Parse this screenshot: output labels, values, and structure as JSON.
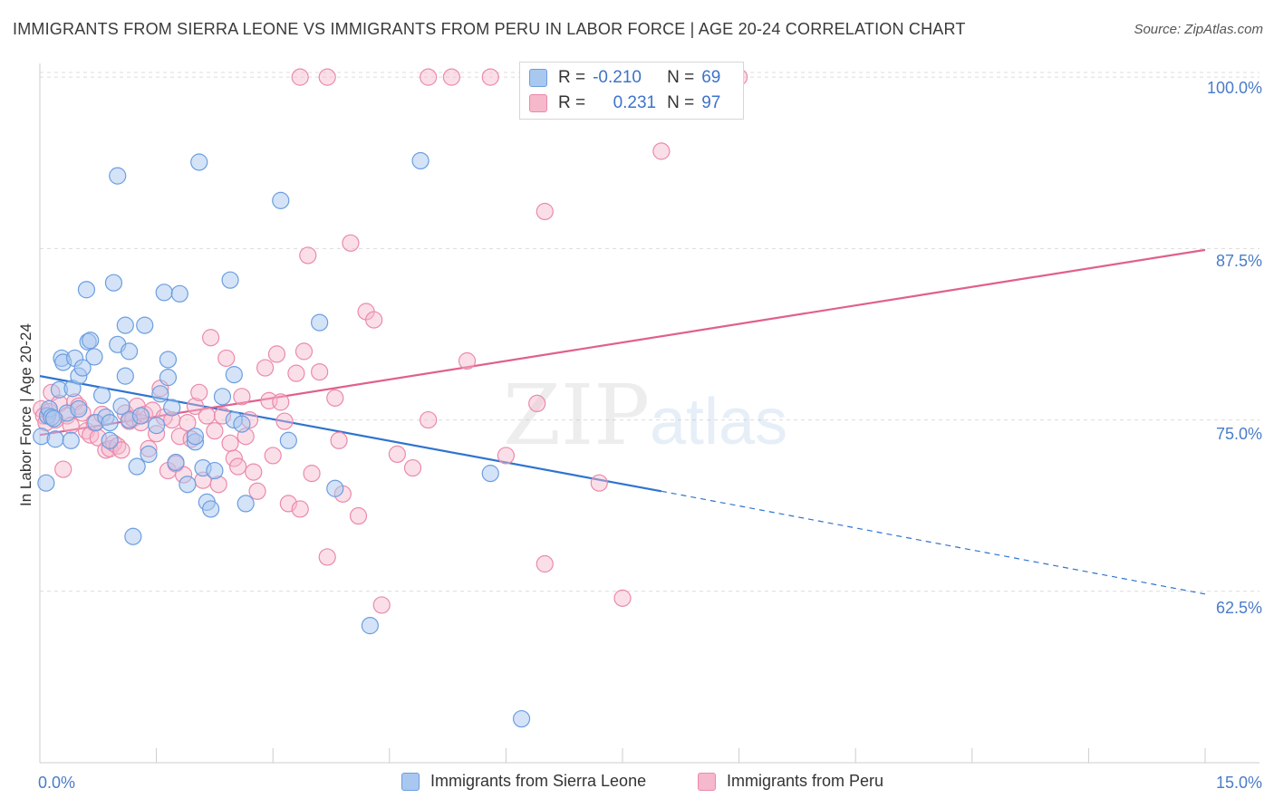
{
  "title": "IMMIGRANTS FROM SIERRA LEONE VS IMMIGRANTS FROM PERU IN LABOR FORCE | AGE 20-24 CORRELATION CHART",
  "source": "Source: ZipAtlas.com",
  "watermark": {
    "zip": "ZIP",
    "atlas": "atlas"
  },
  "stats": {
    "r_label": "R =",
    "n_label": "N =",
    "sierra": {
      "r": "-0.210",
      "n": "69"
    },
    "peru": {
      "r": "0.231",
      "n": "97"
    }
  },
  "colors": {
    "sierra_fill": "#a9c8ef",
    "sierra_stroke": "#6b9ee0",
    "sierra_line": "#2f74d0",
    "peru_fill": "#f6b8cb",
    "peru_stroke": "#ea8aab",
    "peru_line": "#e0608c",
    "tick_label": "#4a7cc9",
    "grid": "#dcdcdc"
  },
  "chart_data": {
    "type": "scatter",
    "title": "IMMIGRANTS FROM SIERRA LEONE VS IMMIGRANTS FROM PERU IN LABOR FORCE | AGE 20-24 CORRELATION CHART",
    "xlabel": "",
    "ylabel": "In Labor Force | Age 20-24",
    "xlim": [
      0,
      15
    ],
    "ylim": [
      50,
      101
    ],
    "x_tick_labels": [
      "0.0%",
      "15.0%"
    ],
    "y_ticks": [
      62.5,
      75.0,
      87.5,
      100.0
    ],
    "y_tick_labels": [
      "62.5%",
      "75.0%",
      "87.5%",
      "100.0%"
    ],
    "grid": true,
    "legend_position": "bottom",
    "series": [
      {
        "name": "Immigrants from Sierra Leone",
        "trend": {
          "x0": 0,
          "y0": 78.2,
          "x1": 8.0,
          "y1": 69.8,
          "dashed_to_x": 15,
          "dashed_to_y": 62.3
        },
        "points": [
          [
            0.02,
            73.8
          ],
          [
            0.08,
            70.4
          ],
          [
            0.1,
            75.3
          ],
          [
            0.12,
            75.8
          ],
          [
            0.15,
            75.2
          ],
          [
            0.2,
            73.6
          ],
          [
            0.25,
            77.2
          ],
          [
            0.28,
            79.5
          ],
          [
            0.3,
            79.2
          ],
          [
            0.35,
            75.5
          ],
          [
            0.4,
            73.5
          ],
          [
            0.42,
            77.3
          ],
          [
            0.45,
            79.5
          ],
          [
            0.5,
            78.2
          ],
          [
            0.5,
            75.8
          ],
          [
            0.55,
            78.8
          ],
          [
            0.6,
            84.5
          ],
          [
            0.62,
            80.7
          ],
          [
            0.65,
            80.8
          ],
          [
            0.7,
            79.6
          ],
          [
            0.72,
            74.8
          ],
          [
            0.8,
            76.8
          ],
          [
            0.85,
            75.2
          ],
          [
            0.9,
            74.8
          ],
          [
            0.9,
            73.5
          ],
          [
            0.95,
            85.0
          ],
          [
            1.0,
            80.5
          ],
          [
            1.0,
            92.8
          ],
          [
            1.05,
            76.0
          ],
          [
            1.1,
            78.2
          ],
          [
            1.1,
            81.9
          ],
          [
            1.15,
            80.0
          ],
          [
            1.15,
            75.0
          ],
          [
            1.2,
            66.5
          ],
          [
            1.25,
            71.6
          ],
          [
            1.3,
            75.3
          ],
          [
            1.35,
            81.9
          ],
          [
            1.4,
            72.5
          ],
          [
            1.5,
            74.6
          ],
          [
            1.55,
            76.9
          ],
          [
            1.6,
            84.3
          ],
          [
            1.65,
            79.4
          ],
          [
            1.65,
            78.1
          ],
          [
            1.7,
            75.9
          ],
          [
            1.75,
            71.9
          ],
          [
            1.8,
            84.2
          ],
          [
            1.9,
            70.3
          ],
          [
            2.0,
            73.4
          ],
          [
            2.05,
            93.8
          ],
          [
            2.0,
            73.8
          ],
          [
            2.1,
            71.5
          ],
          [
            2.15,
            69.0
          ],
          [
            2.2,
            68.5
          ],
          [
            2.25,
            71.3
          ],
          [
            2.35,
            76.7
          ],
          [
            2.45,
            85.2
          ],
          [
            2.5,
            78.3
          ],
          [
            2.5,
            75.0
          ],
          [
            2.6,
            74.7
          ],
          [
            2.65,
            68.9
          ],
          [
            3.1,
            91.0
          ],
          [
            3.2,
            73.5
          ],
          [
            3.6,
            82.1
          ],
          [
            3.8,
            70.0
          ],
          [
            4.25,
            60.0
          ],
          [
            4.9,
            93.9
          ],
          [
            5.8,
            71.1
          ],
          [
            6.2,
            53.2
          ],
          [
            0.18,
            75.1
          ]
        ]
      },
      {
        "name": "Immigrants from Peru",
        "trend": {
          "x0": 0,
          "y0": 73.9,
          "x1": 15,
          "y1": 87.4
        },
        "points": [
          [
            0.02,
            75.8
          ],
          [
            0.05,
            75.3
          ],
          [
            0.08,
            74.8
          ],
          [
            0.12,
            75.6
          ],
          [
            0.15,
            77.0
          ],
          [
            0.2,
            75.0
          ],
          [
            0.25,
            76.2
          ],
          [
            0.3,
            71.4
          ],
          [
            0.35,
            75.3
          ],
          [
            0.4,
            74.6
          ],
          [
            0.45,
            76.3
          ],
          [
            0.5,
            76.0
          ],
          [
            0.55,
            75.5
          ],
          [
            0.6,
            74.2
          ],
          [
            0.65,
            73.9
          ],
          [
            0.7,
            74.8
          ],
          [
            0.75,
            73.7
          ],
          [
            0.8,
            75.4
          ],
          [
            0.85,
            72.8
          ],
          [
            0.9,
            72.9
          ],
          [
            0.95,
            73.3
          ],
          [
            1.0,
            73.1
          ],
          [
            1.05,
            72.8
          ],
          [
            1.1,
            75.5
          ],
          [
            1.15,
            74.9
          ],
          [
            1.2,
            75.1
          ],
          [
            1.25,
            76.0
          ],
          [
            1.3,
            74.8
          ],
          [
            1.35,
            75.4
          ],
          [
            1.4,
            72.9
          ],
          [
            1.45,
            75.7
          ],
          [
            1.5,
            74.0
          ],
          [
            1.55,
            77.3
          ],
          [
            1.6,
            75.2
          ],
          [
            1.65,
            71.3
          ],
          [
            1.7,
            75.0
          ],
          [
            1.75,
            71.8
          ],
          [
            1.8,
            73.8
          ],
          [
            1.85,
            71.0
          ],
          [
            1.9,
            74.8
          ],
          [
            1.95,
            73.6
          ],
          [
            2.0,
            76.0
          ],
          [
            2.05,
            77.0
          ],
          [
            2.1,
            70.6
          ],
          [
            2.15,
            75.3
          ],
          [
            2.2,
            81.0
          ],
          [
            2.25,
            74.2
          ],
          [
            2.3,
            70.3
          ],
          [
            2.35,
            75.3
          ],
          [
            2.4,
            79.5
          ],
          [
            2.45,
            73.3
          ],
          [
            2.5,
            72.2
          ],
          [
            2.55,
            71.6
          ],
          [
            2.6,
            76.7
          ],
          [
            2.65,
            73.8
          ],
          [
            2.7,
            75.0
          ],
          [
            2.75,
            71.2
          ],
          [
            2.8,
            69.8
          ],
          [
            2.9,
            78.8
          ],
          [
            2.95,
            76.4
          ],
          [
            3.0,
            72.4
          ],
          [
            3.05,
            79.8
          ],
          [
            3.1,
            76.3
          ],
          [
            3.15,
            74.9
          ],
          [
            3.2,
            68.9
          ],
          [
            3.3,
            78.4
          ],
          [
            3.35,
            68.5
          ],
          [
            3.4,
            80.0
          ],
          [
            3.45,
            87.0
          ],
          [
            3.5,
            71.1
          ],
          [
            3.6,
            78.5
          ],
          [
            3.7,
            65.0
          ],
          [
            3.8,
            76.6
          ],
          [
            3.85,
            73.5
          ],
          [
            3.9,
            69.6
          ],
          [
            4.0,
            87.9
          ],
          [
            4.1,
            68.0
          ],
          [
            4.2,
            82.9
          ],
          [
            4.3,
            82.3
          ],
          [
            4.4,
            61.5
          ],
          [
            4.6,
            72.5
          ],
          [
            4.8,
            71.5
          ],
          [
            5.0,
            75.0
          ],
          [
            5.5,
            79.3
          ],
          [
            6.0,
            72.4
          ],
          [
            6.4,
            76.2
          ],
          [
            6.5,
            90.2
          ],
          [
            6.5,
            64.5
          ],
          [
            7.2,
            70.4
          ],
          [
            7.5,
            62.0
          ],
          [
            3.35,
            100.0
          ],
          [
            3.7,
            100.0
          ],
          [
            5.0,
            100.0
          ],
          [
            5.3,
            100.0
          ],
          [
            5.8,
            100.0
          ],
          [
            8.0,
            94.6
          ],
          [
            9.0,
            100.0
          ]
        ]
      }
    ]
  },
  "legend": {
    "sierra_label": "Immigrants from Sierra Leone",
    "peru_label": "Immigrants from Peru"
  }
}
